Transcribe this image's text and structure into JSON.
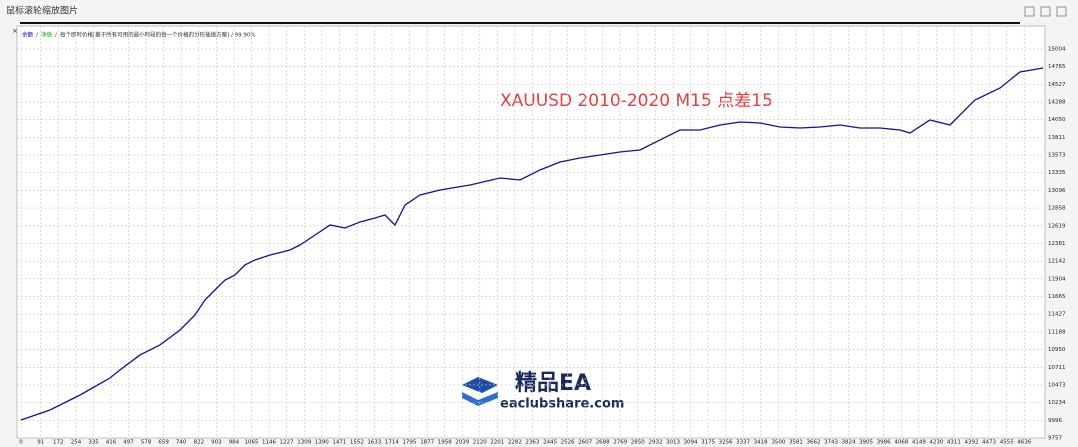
{
  "window_title": "鼠标滚轮缩放图片",
  "chart_data": {
    "type": "line",
    "annotation": "XAUUSD 2010-2020 M15 点差15",
    "info_text": "每个即时价格[基于所有可用的最小时段的每一个价格的分形插值方案] / 99.90%",
    "watermark": {
      "title": "精品EA",
      "url": "eaclubshare.com"
    },
    "x": [
      0,
      134,
      273,
      411,
      457,
      550,
      642,
      735,
      804,
      850,
      896,
      943,
      989,
      1035,
      1081,
      1151,
      1243,
      1289,
      1359,
      1428,
      1497,
      1567,
      1636,
      1682,
      1728,
      1775,
      1844,
      1936,
      2075,
      2213,
      2306,
      2398,
      2491,
      2583,
      2676,
      2768,
      2860,
      2953,
      3045,
      3138,
      3230,
      3323,
      3415,
      3507,
      3600,
      3692,
      3785,
      3877,
      3969,
      4062,
      4108,
      4200,
      4293,
      4339,
      4408,
      4524,
      4616,
      4723
    ],
    "series": [
      {
        "name": "余额",
        "color": "#1010a0",
        "values": [
          10000,
          10135,
          10337,
          10566,
          10674,
          10877,
          11012,
          11214,
          11416,
          11618,
          11753,
          11888,
          11956,
          12091,
          12158,
          12225,
          12293,
          12360,
          12495,
          12630,
          12590,
          12671,
          12725,
          12765,
          12630,
          12900,
          13035,
          13102,
          13170,
          13264,
          13237,
          13372,
          13480,
          13534,
          13574,
          13615,
          13642,
          13777,
          13911,
          13911,
          13979,
          14019,
          14006,
          13952,
          13938,
          13952,
          13979,
          13938,
          13938,
          13911,
          13871,
          14046,
          13979,
          14114,
          14316,
          14478,
          14694,
          14748
        ]
      }
    ],
    "other_legend_entries": [
      {
        "name": "净值",
        "color": "#10b010"
      }
    ],
    "xlim": [
      0,
      4730
    ],
    "ylim": [
      9757,
      15287
    ],
    "xticks": [
      0,
      91,
      172,
      254,
      335,
      416,
      497,
      578,
      659,
      740,
      822,
      903,
      984,
      1065,
      1146,
      1227,
      1309,
      1390,
      1471,
      1552,
      1633,
      1714,
      1795,
      1877,
      1958,
      2039,
      2120,
      2201,
      2282,
      2363,
      2445,
      2526,
      2607,
      2688,
      2769,
      2850,
      2932,
      3013,
      3094,
      3175,
      3256,
      3337,
      3418,
      3500,
      3581,
      3662,
      3743,
      3824,
      3905,
      3986,
      4068,
      4149,
      4230,
      4311,
      4392,
      4473,
      4555,
      4636
    ],
    "yticks": [
      15004,
      14765,
      14527,
      14288,
      14050,
      13811,
      13573,
      13335,
      13096,
      12858,
      12619,
      12381,
      12142,
      11904,
      11665,
      11427,
      11188,
      10950,
      10711,
      10473,
      10234,
      9996,
      9757
    ],
    "grid": true
  }
}
